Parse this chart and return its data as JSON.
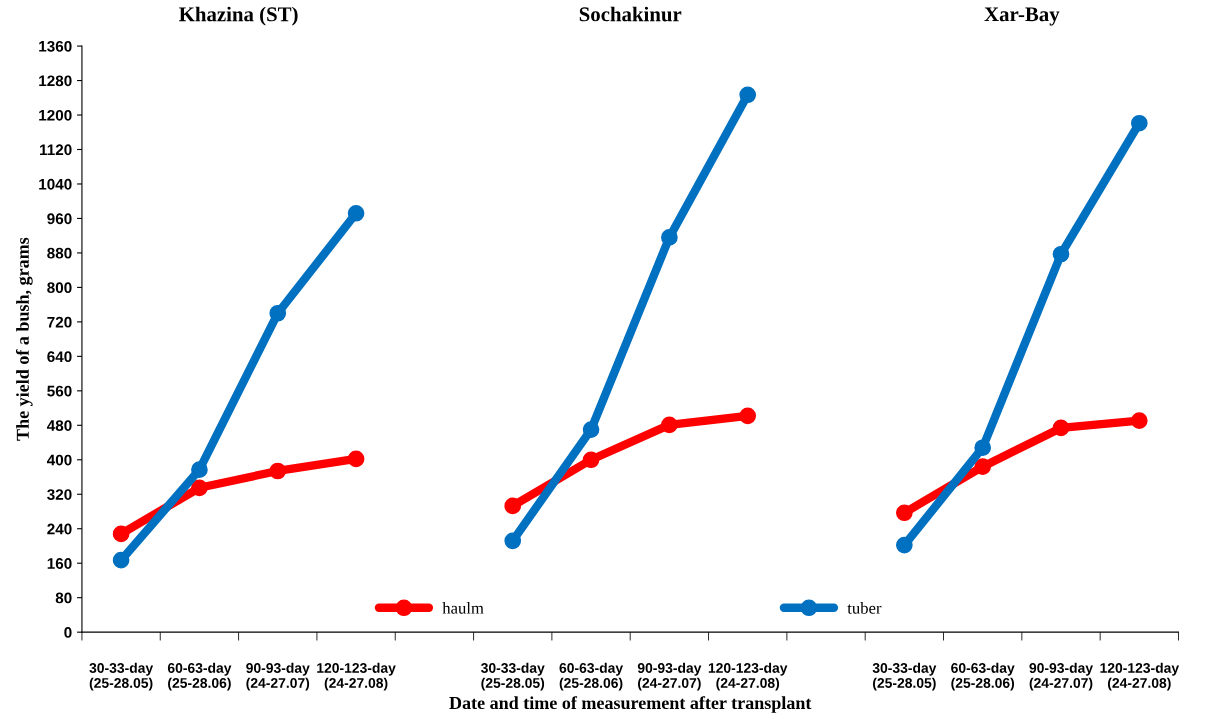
{
  "chart_data": {
    "type": "line",
    "xlabel": "Date and time of measurement after transplant",
    "ylabel": "The yield of a bush, grams",
    "annotations": [
      "Khazina (ST)",
      "Sochakinur",
      "Xar-Bay"
    ],
    "categories": [
      "30-33-day\n(25-28.05)",
      "60-63-day\n(25-28.06)",
      "90-93-day\n(24-27.07)",
      "120-123-day\n(24-27.08)",
      null,
      "30-33-day\n(25-28.05)",
      "60-63-day\n(25-28.06)",
      "90-93-day\n(24-27.07)",
      "120-123-day\n(24-27.08)",
      null,
      "30-33-day\n(25-28.05)",
      "60-63-day\n(25-28.06)",
      "90-93-day\n(24-27.07)",
      "120-123-day\n(24-27.08)"
    ],
    "series": [
      {
        "name": "haulm",
        "color": "#ff0000",
        "values": [
          228,
          335,
          374,
          402,
          null,
          293,
          400,
          481,
          502,
          null,
          277,
          384,
          474,
          491
        ]
      },
      {
        "name": "tuber",
        "color": "#0070c0",
        "values": [
          167,
          377,
          740,
          972,
          null,
          212,
          470,
          916,
          1247,
          null,
          202,
          428,
          877,
          1181
        ]
      }
    ],
    "ylim": [
      0,
      1360
    ],
    "yticks": [
      0,
      80,
      160,
      240,
      320,
      400,
      480,
      560,
      640,
      720,
      800,
      880,
      960,
      1040,
      1120,
      1200,
      1280,
      1360
    ],
    "grid": false,
    "legend": "bottom",
    "marker": "circle",
    "line_style": "solid"
  }
}
